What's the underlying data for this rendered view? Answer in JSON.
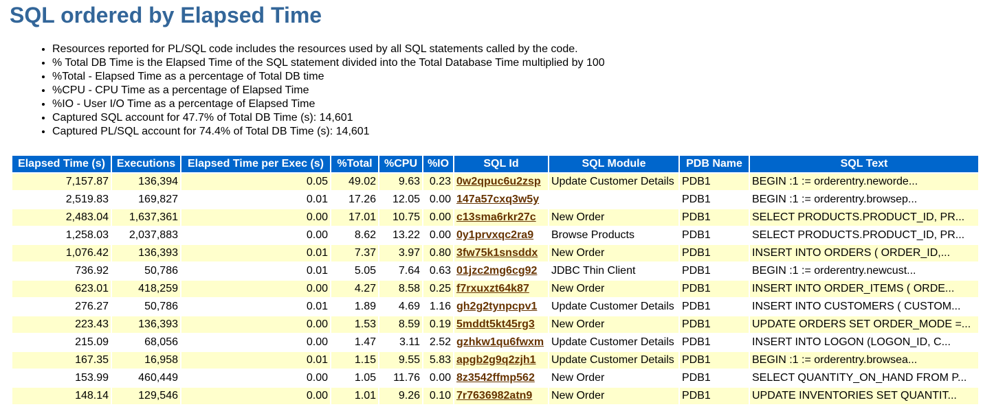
{
  "page": {
    "title": "SQL ordered by Elapsed Time",
    "notes": [
      "Resources reported for PL/SQL code includes the resources used by all SQL statements called by the code.",
      "% Total DB Time is the Elapsed Time of the SQL statement divided into the Total Database Time multiplied by 100",
      "%Total - Elapsed Time as a percentage of Total DB time",
      "%CPU - CPU Time as a percentage of Elapsed Time",
      "%IO - User I/O Time as a percentage of Elapsed Time",
      "Captured SQL account for 47.7% of Total DB Time (s): 14,601",
      "Captured PL/SQL account for 74.4% of Total DB Time (s): 14,601"
    ]
  },
  "table": {
    "headers": [
      "Elapsed Time (s)",
      "Executions",
      "Elapsed Time per Exec (s)",
      "%Total",
      "%CPU",
      "%IO",
      "SQL Id",
      "SQL Module",
      "PDB Name",
      "SQL Text"
    ],
    "rows": [
      {
        "elapsed": "7,157.87",
        "execs": "136,394",
        "per_exec": "0.05",
        "total": "49.02",
        "cpu": "9.63",
        "io": "0.23",
        "sql_id": "0w2qpuc6u2zsp",
        "module": "Update Customer Details",
        "pdb": "PDB1",
        "text": "BEGIN :1 := orderentry.neworde..."
      },
      {
        "elapsed": "2,519.83",
        "execs": "169,827",
        "per_exec": "0.01",
        "total": "17.26",
        "cpu": "12.05",
        "io": "0.00",
        "sql_id": "147a57cxq3w5y",
        "module": "",
        "pdb": "PDB1",
        "text": "BEGIN :1 := orderentry.browsep..."
      },
      {
        "elapsed": "2,483.04",
        "execs": "1,637,361",
        "per_exec": "0.00",
        "total": "17.01",
        "cpu": "10.75",
        "io": "0.00",
        "sql_id": "c13sma6rkr27c",
        "module": "New Order",
        "pdb": "PDB1",
        "text": "SELECT PRODUCTS.PRODUCT_ID, PR..."
      },
      {
        "elapsed": "1,258.03",
        "execs": "2,037,883",
        "per_exec": "0.00",
        "total": "8.62",
        "cpu": "13.22",
        "io": "0.00",
        "sql_id": "0y1prvxqc2ra9",
        "module": "Browse Products",
        "pdb": "PDB1",
        "text": "SELECT PRODUCTS.PRODUCT_ID, PR..."
      },
      {
        "elapsed": "1,076.42",
        "execs": "136,393",
        "per_exec": "0.01",
        "total": "7.37",
        "cpu": "3.97",
        "io": "0.80",
        "sql_id": "3fw75k1snsddx",
        "module": "New Order",
        "pdb": "PDB1",
        "text": "INSERT INTO ORDERS ( ORDER_ID,..."
      },
      {
        "elapsed": "736.92",
        "execs": "50,786",
        "per_exec": "0.01",
        "total": "5.05",
        "cpu": "7.64",
        "io": "0.63",
        "sql_id": "01jzc2mg6cg92",
        "module": "JDBC Thin Client",
        "pdb": "PDB1",
        "text": "BEGIN :1 := orderentry.newcust..."
      },
      {
        "elapsed": "623.01",
        "execs": "418,259",
        "per_exec": "0.00",
        "total": "4.27",
        "cpu": "8.58",
        "io": "0.25",
        "sql_id": "f7rxuxzt64k87",
        "module": "New Order",
        "pdb": "PDB1",
        "text": "INSERT INTO ORDER_ITEMS ( ORDE..."
      },
      {
        "elapsed": "276.27",
        "execs": "50,786",
        "per_exec": "0.01",
        "total": "1.89",
        "cpu": "4.69",
        "io": "1.16",
        "sql_id": "gh2g2tynpcpv1",
        "module": "Update Customer Details",
        "pdb": "PDB1",
        "text": "INSERT INTO CUSTOMERS ( CUSTOM..."
      },
      {
        "elapsed": "223.43",
        "execs": "136,393",
        "per_exec": "0.00",
        "total": "1.53",
        "cpu": "8.59",
        "io": "0.19",
        "sql_id": "5mddt5kt45rg3",
        "module": "New Order",
        "pdb": "PDB1",
        "text": "UPDATE ORDERS SET ORDER_MODE =..."
      },
      {
        "elapsed": "215.09",
        "execs": "68,056",
        "per_exec": "0.00",
        "total": "1.47",
        "cpu": "3.11",
        "io": "2.52",
        "sql_id": "gzhkw1qu6fwxm",
        "module": "Update Customer Details",
        "pdb": "PDB1",
        "text": "INSERT INTO LOGON (LOGON_ID, C..."
      },
      {
        "elapsed": "167.35",
        "execs": "16,958",
        "per_exec": "0.01",
        "total": "1.15",
        "cpu": "9.55",
        "io": "5.83",
        "sql_id": "apgb2g9q2zjh1",
        "module": "Update Customer Details",
        "pdb": "PDB1",
        "text": "BEGIN :1 := orderentry.browsea..."
      },
      {
        "elapsed": "153.99",
        "execs": "460,449",
        "per_exec": "0.00",
        "total": "1.05",
        "cpu": "11.76",
        "io": "0.00",
        "sql_id": "8z3542ffmp562",
        "module": "New Order",
        "pdb": "PDB1",
        "text": "SELECT QUANTITY_ON_HAND FROM P..."
      },
      {
        "elapsed": "148.14",
        "execs": "129,546",
        "per_exec": "0.00",
        "total": "1.01",
        "cpu": "9.26",
        "io": "0.10",
        "sql_id": "7r7636982atn9",
        "module": "New Order",
        "pdb": "PDB1",
        "text": "UPDATE INVENTORIES SET QUANTIT..."
      }
    ]
  },
  "colors": {
    "title": "#336699",
    "header_bg": "#0066cc",
    "odd_row_bg": "#ffffcc",
    "link": "#663300"
  }
}
